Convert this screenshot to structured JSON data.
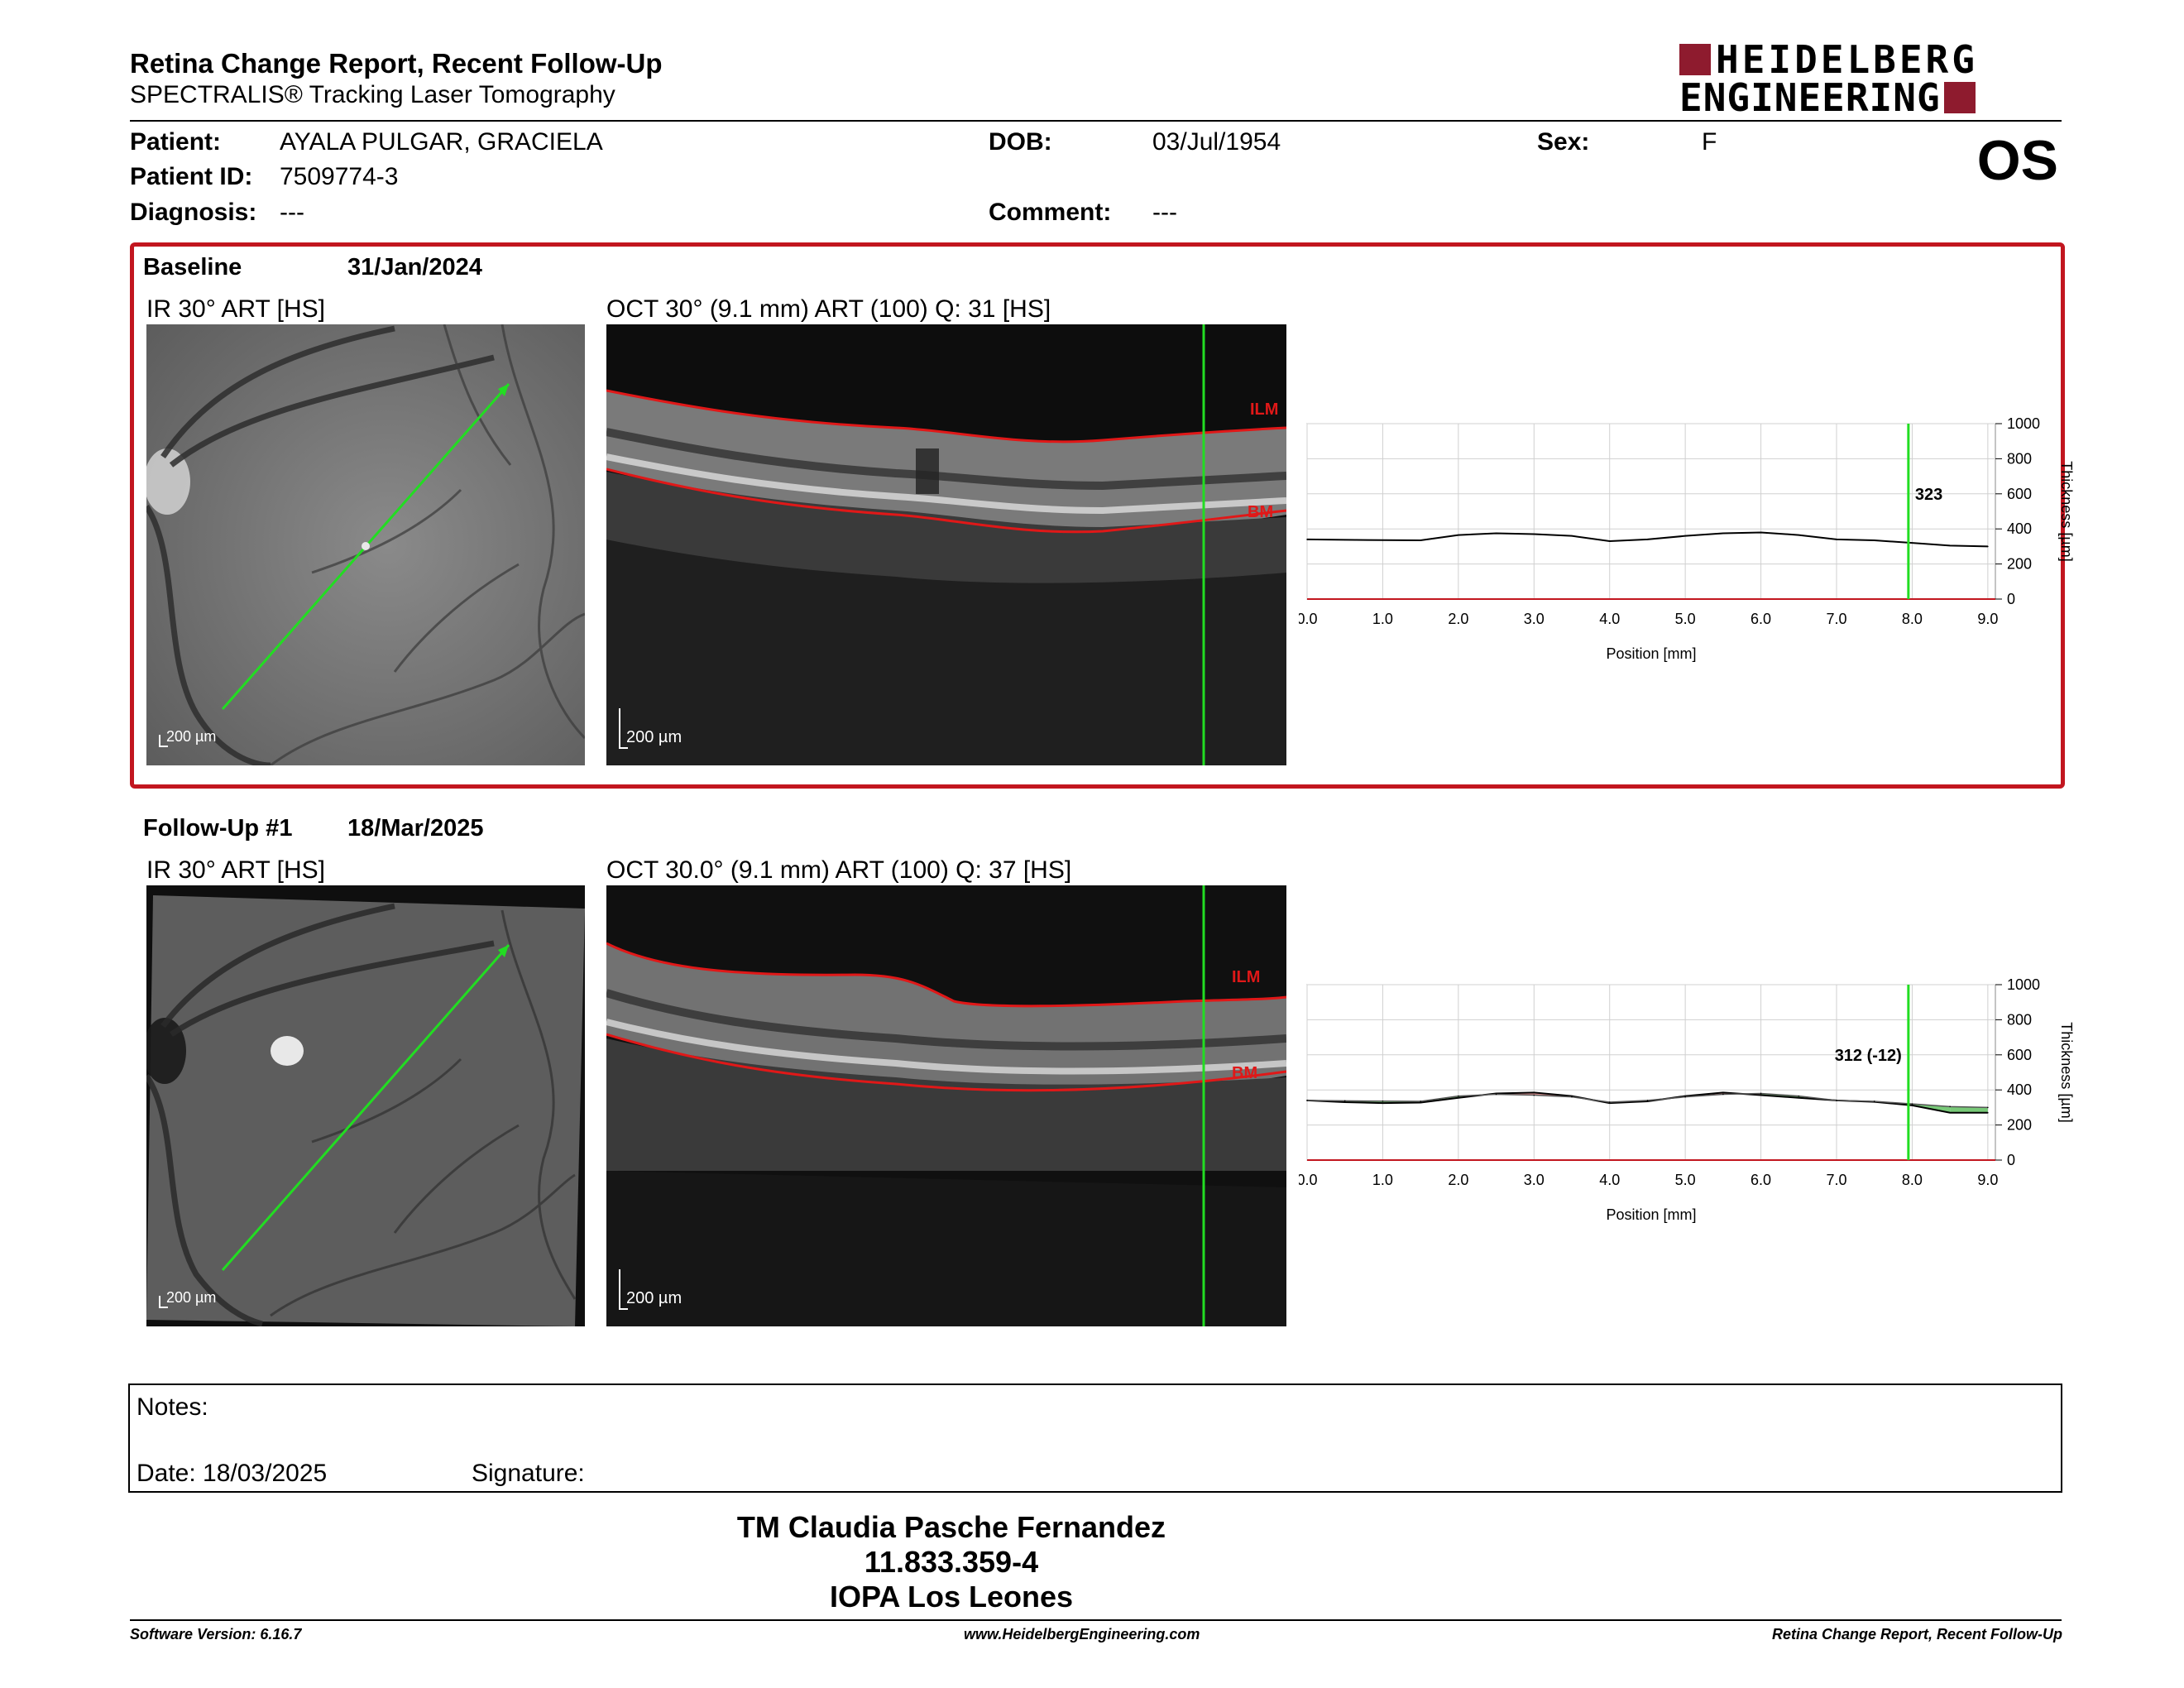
{
  "header": {
    "report_title": "Retina Change Report, Recent Follow-Up",
    "subtitle": "SPECTRALIS® Tracking Laser Tomography",
    "brand_line1": "HEIDELBERG",
    "brand_line2": "ENGINEERING",
    "eye": "OS"
  },
  "patient": {
    "patient_label": "Patient:",
    "patient_name": "AYALA PULGAR, GRACIELA",
    "dob_label": "DOB:",
    "dob": "03/Jul/1954",
    "sex_label": "Sex:",
    "sex": "F",
    "id_label": "Patient ID:",
    "id": "7509774-3",
    "diagnosis_label": "Diagnosis:",
    "diagnosis": "---",
    "comment_label": "Comment:",
    "comment": "---"
  },
  "baseline": {
    "label": "Baseline",
    "date": "31/Jan/2024",
    "ir_caption": "IR 30° ART [HS]",
    "oct_caption": "OCT 30° (9.1 mm) ART (100) Q: 31 [HS]",
    "scale_label": "200 µm",
    "ilm": "ILM",
    "bm": "BM",
    "cursor_value": "323"
  },
  "followup": {
    "label": "Follow-Up #1",
    "date": "18/Mar/2025",
    "ir_caption": "IR 30° ART [HS]",
    "oct_caption": "OCT 30.0° (9.1 mm) ART (100) Q: 37 [HS]",
    "scale_label": "200 µm",
    "ilm": "ILM",
    "bm": "BM",
    "cursor_value": "312 (-12)"
  },
  "chart_common": {
    "xlabel": "Position [mm]",
    "ylabel": "Thickness [µm]",
    "x_ticks": [
      "0.0",
      "1.0",
      "2.0",
      "3.0",
      "4.0",
      "5.0",
      "6.0",
      "7.0",
      "8.0",
      "9.0"
    ],
    "y_ticks": [
      "1000",
      "800",
      "600",
      "400",
      "200",
      "0"
    ]
  },
  "chart_data": [
    {
      "type": "line",
      "xlabel": "Position [mm]",
      "ylabel": "Thickness [µm]",
      "xlim": [
        0,
        9.1
      ],
      "ylim": [
        0,
        1000
      ],
      "grid": true,
      "cursor_x": 7.95,
      "series": [
        {
          "x": [
            0,
            0.5,
            1,
            1.5,
            2,
            2.5,
            3,
            3.5,
            4,
            4.5,
            5,
            5.5,
            6,
            6.5,
            7,
            7.5,
            8,
            8.5,
            9
          ],
          "values": [
            340,
            338,
            336,
            335,
            365,
            375,
            370,
            360,
            330,
            340,
            360,
            375,
            380,
            365,
            340,
            335,
            320,
            305,
            300
          ]
        }
      ]
    },
    {
      "type": "line",
      "xlabel": "Position [mm]",
      "ylabel": "Thickness [µm]",
      "xlim": [
        0,
        9.1
      ],
      "ylim": [
        0,
        1000
      ],
      "grid": true,
      "cursor_x": 7.95,
      "series": [
        {
          "x": [
            0,
            0.5,
            1,
            1.5,
            2,
            2.5,
            3,
            3.5,
            4,
            4.5,
            5,
            5.5,
            6,
            6.5,
            7,
            7.5,
            8,
            8.5,
            9
          ],
          "values": [
            340,
            330,
            325,
            328,
            355,
            380,
            385,
            365,
            325,
            335,
            365,
            385,
            370,
            355,
            340,
            332,
            312,
            270,
            270
          ]
        },
        {
          "x": [
            0,
            0.5,
            1,
            1.5,
            2,
            2.5,
            3,
            3.5,
            4,
            4.5,
            5,
            5.5,
            6,
            6.5,
            7,
            7.5,
            8,
            8.5,
            9
          ],
          "values": [
            340,
            338,
            336,
            335,
            365,
            375,
            370,
            360,
            330,
            340,
            360,
            375,
            380,
            365,
            340,
            335,
            320,
            305,
            300
          ]
        }
      ]
    }
  ],
  "notes": {
    "notes_label": "Notes:",
    "date_label": "Date: 18/03/2025",
    "signature_label": "Signature:"
  },
  "signature_block": {
    "line1": "TM Claudia Pasche Fernandez",
    "line2": "11.833.359-4",
    "line3": "IOPA Los Leones"
  },
  "footer": {
    "software": "Software Version: 6.16.7",
    "website": "www.HeidelbergEngineering.com",
    "report": "Retina Change Report, Recent Follow-Up"
  },
  "colors": {
    "accent_red": "#c2161f",
    "brand_red": "#8e1b2e",
    "cursor_green": "#22dd22",
    "thickness_increase": "#d98080",
    "thickness_decrease": "#60c060"
  }
}
